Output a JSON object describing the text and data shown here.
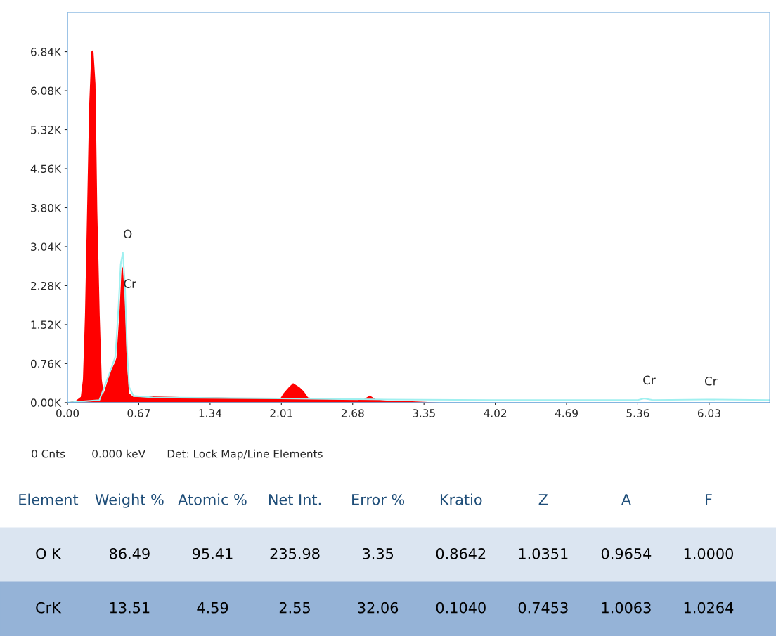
{
  "chart_data": [
    {
      "type": "area",
      "xlim": [
        0,
        6.6
      ],
      "ylim": [
        0,
        7.6
      ],
      "xticks": [
        {
          "value": 0,
          "label": "0.00"
        },
        0.67,
        1.34,
        2.01,
        2.68,
        3.35,
        4.02,
        4.69,
        5.36,
        6.03
      ],
      "yticks": [
        {
          "value": 0,
          "label": "0.00K"
        },
        {
          "value": 0.76,
          "label": "0.76K"
        },
        {
          "value": 1.52,
          "label": "1.52K"
        },
        {
          "value": 2.28,
          "label": "2.28K"
        },
        {
          "value": 3.04,
          "label": "3.04K"
        },
        {
          "value": 3.8,
          "label": "3.80K"
        },
        {
          "value": 4.56,
          "label": "4.56K"
        },
        {
          "value": 5.32,
          "label": "5.32K"
        },
        {
          "value": 6.08,
          "label": "6.08K"
        },
        {
          "value": 6.84,
          "label": "6.84K"
        }
      ],
      "grid": false,
      "legend": false,
      "series": [
        {
          "type": "area",
          "color": "#ff0000",
          "x": [
            0,
            0.08,
            0.125,
            0.145,
            0.164,
            0.184,
            0.204,
            0.224,
            0.243,
            0.263,
            0.28,
            0.303,
            0.322,
            0.34,
            0.37,
            0.4,
            0.44,
            0.46,
            0.49,
            0.507,
            0.52,
            0.54,
            0.56,
            0.58,
            0.62,
            0.8,
            1.0,
            1.2,
            1.4,
            1.6,
            1.8,
            2.0,
            2.03,
            2.08,
            2.12,
            2.18,
            2.22,
            2.26,
            2.35,
            2.6,
            2.78,
            2.84,
            2.9,
            3.0,
            3.2,
            3.5
          ],
          "values": [
            0,
            0.04,
            0.11,
            0.45,
            1.69,
            3.75,
            5.81,
            6.84,
            6.88,
            6.22,
            3.75,
            1.69,
            0.45,
            0.18,
            0.38,
            0.59,
            0.76,
            0.87,
            1.83,
            2.58,
            2.65,
            1.96,
            0.73,
            0.18,
            0.11,
            0.12,
            0.11,
            0.1,
            0.1,
            0.09,
            0.08,
            0.08,
            0.18,
            0.3,
            0.38,
            0.3,
            0.22,
            0.1,
            0.07,
            0.06,
            0.06,
            0.14,
            0.06,
            0.04,
            0.03,
            0
          ]
        },
        {
          "type": "line",
          "color": "#a0f0f0",
          "x": [
            0,
            0.3,
            0.4,
            0.45,
            0.48,
            0.5,
            0.52,
            0.54,
            0.56,
            0.58,
            0.62,
            0.8,
            2.0,
            3.0,
            4.0,
            5.36,
            5.42,
            5.5,
            6.0,
            6.6
          ],
          "values": [
            0,
            0.05,
            0.6,
            0.9,
            1.9,
            2.7,
            2.93,
            2.3,
            1.0,
            0.3,
            0.13,
            0.1,
            0.08,
            0.06,
            0.05,
            0.05,
            0.08,
            0.05,
            0.06,
            0.05
          ]
        }
      ],
      "annotations": [
        {
          "text": "O",
          "x": 0.52,
          "y": 2.93
        },
        {
          "text": "Cr",
          "x": 0.54,
          "y": 1.96
        },
        {
          "text": "Cr",
          "x": 5.42,
          "y": 0.08
        },
        {
          "text": "Cr",
          "x": 6.0,
          "y": 0.06
        },
        "0 Cnts",
        "0.000 keV",
        "Det: Lock Map/Line Elements"
      ]
    },
    {
      "type": "other",
      "annotations": [
        "Element",
        "Weight %",
        "Atomic %",
        "Net Int.",
        "Error %",
        "Kratio",
        "Z",
        "A",
        "F",
        "O K",
        "86.49",
        "95.41",
        "235.98",
        "3.35",
        "0.8642",
        "1.0351",
        "0.9654",
        "1.0000",
        "CrK",
        "13.51",
        "4.59",
        "2.55",
        "32.06",
        "0.1040",
        "0.7453",
        "1.0063",
        "1.0264"
      ]
    }
  ]
}
